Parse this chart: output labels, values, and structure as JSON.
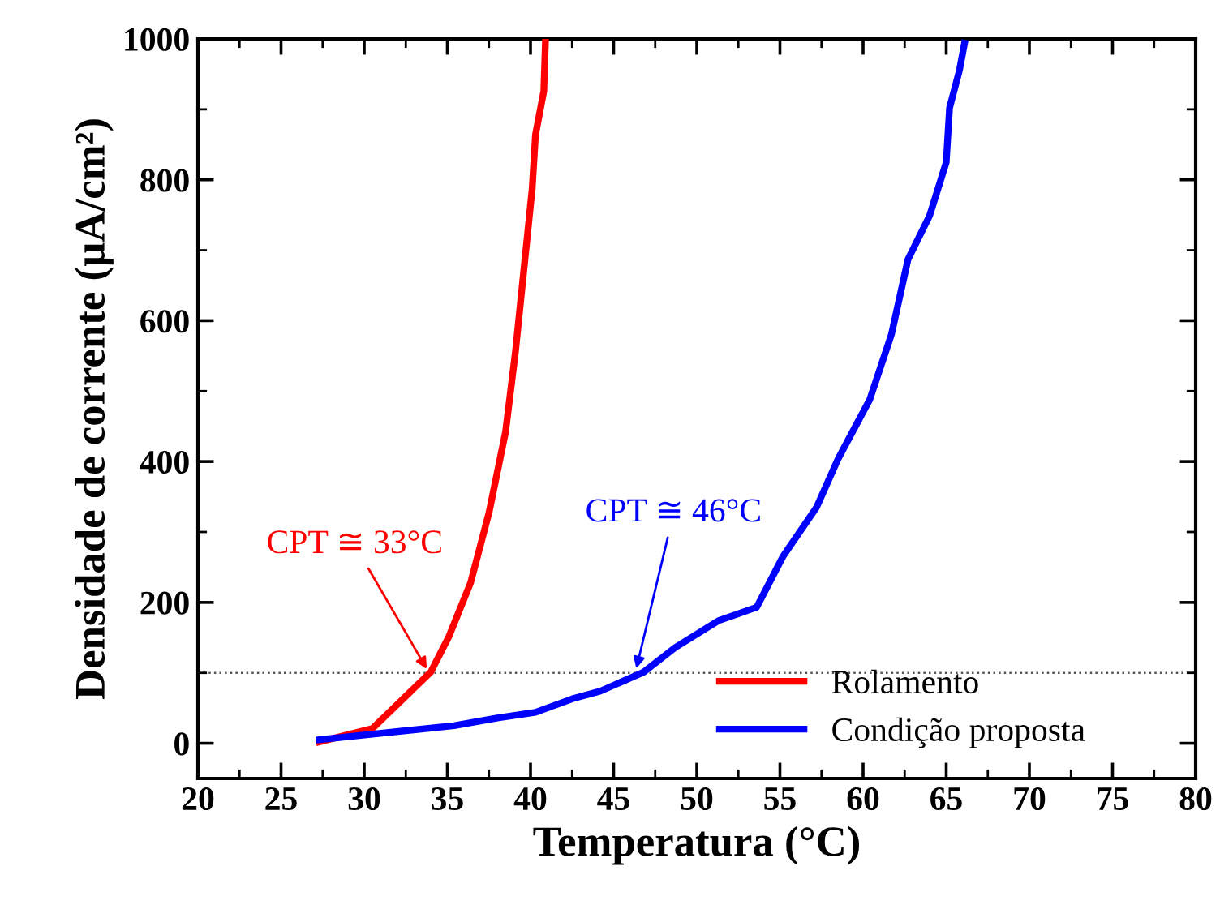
{
  "chart_data": {
    "type": "line",
    "xlabel": "Temperatura (°C)",
    "ylabel": "Densidade de corrente (µA/cm²)",
    "xlim": [
      20,
      80
    ],
    "xticks": [
      20,
      25,
      30,
      35,
      40,
      45,
      50,
      55,
      60,
      65,
      70,
      75,
      80
    ],
    "ylim": [
      -50,
      1000
    ],
    "yticks": [
      0,
      200,
      400,
      600,
      800,
      1000
    ],
    "grid": false,
    "legend": "bottom right",
    "marker": "none",
    "line_style": "solid",
    "series": [
      {
        "name": "Rolamento",
        "color": "#ff0000",
        "x": [
          27.3,
          30.5,
          32.2,
          34.0,
          35.1,
          36.4,
          37.5,
          38.5,
          39.1,
          39.6,
          40.1,
          40.3,
          40.8,
          40.9
        ],
        "values": [
          2,
          21,
          60,
          101,
          152,
          228,
          327,
          442,
          557,
          672,
          787,
          864,
          926,
          998
        ]
      },
      {
        "name": "Condição proposta",
        "color": "#0000ff",
        "x": [
          27.3,
          35.4,
          38.0,
          40.3,
          42.5,
          44.2,
          46.8,
          48.7,
          51.3,
          53.6,
          55.2,
          57.2,
          58.5,
          60.4,
          61.7,
          62.7,
          64.0,
          65.0,
          65.2,
          65.8,
          66.1
        ],
        "values": [
          5,
          25,
          36,
          44,
          63,
          74,
          101,
          136,
          174,
          193,
          266,
          335,
          404,
          488,
          580,
          687,
          749,
          825,
          902,
          956,
          994
        ]
      }
    ],
    "ref_lines": [
      {
        "axis": "y",
        "value": 100,
        "color": "#555555",
        "line_style": "dotted"
      }
    ],
    "annotations": [
      {
        "text": "CPT ≅ 33°C",
        "x": 33.9,
        "y": 100
      },
      {
        "text": "CPT ≅ 46°C",
        "x": 46.3,
        "y": 100
      }
    ]
  }
}
